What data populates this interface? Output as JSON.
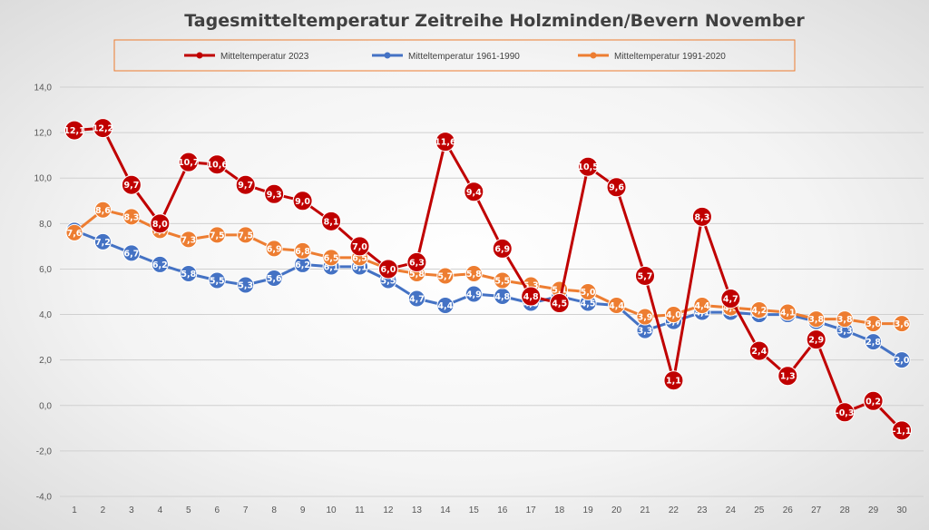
{
  "chart_data": {
    "type": "line",
    "title": "Tagesmitteltemperatur Zeitreihe Holzminden/Bevern November",
    "xlabel": "",
    "ylabel": "",
    "ylim": [
      -4.0,
      14.0
    ],
    "ytick_step": 2.0,
    "y_tick_labels": [
      "-4,0",
      "-2,0",
      "0,0",
      "2,0",
      "4,0",
      "6,0",
      "8,0",
      "10,0",
      "12,0",
      "14,0"
    ],
    "categories": [
      "1",
      "2",
      "3",
      "4",
      "5",
      "6",
      "7",
      "8",
      "9",
      "10",
      "11",
      "12",
      "13",
      "14",
      "15",
      "16",
      "17",
      "18",
      "19",
      "20",
      "21",
      "22",
      "23",
      "24",
      "25",
      "26",
      "27",
      "28",
      "29",
      "30"
    ],
    "grid": "horizontal",
    "legend_position": "top",
    "series": [
      {
        "name": "Mitteltemperatur 2023",
        "color": "#c00000",
        "values": [
          12.1,
          12.2,
          9.7,
          8.0,
          10.7,
          10.6,
          9.7,
          9.3,
          9.0,
          8.1,
          7.0,
          6.0,
          6.3,
          11.6,
          9.4,
          6.9,
          4.8,
          4.5,
          10.5,
          9.6,
          5.7,
          1.1,
          8.3,
          4.7,
          2.4,
          1.3,
          2.9,
          -0.3,
          0.2,
          -1.1
        ],
        "labels": [
          "12,1",
          "12,2",
          "9,7",
          "8,0",
          "10,7",
          "10,6",
          "9,7",
          "9,3",
          "9,0",
          "8,1",
          "7,0",
          "6,0",
          "6,3",
          "11,6",
          "9,4",
          "6,9",
          "4,8",
          "4,5",
          "10,5",
          "9,6",
          "5,7",
          "1,1",
          "8,3",
          "4,7",
          "2,4",
          "1,3",
          "2,9",
          "-0,3",
          "0,2",
          "-1,1"
        ]
      },
      {
        "name": "Mitteltemperatur 1961-1990",
        "color": "#4472c4",
        "values": [
          7.7,
          7.2,
          6.7,
          6.2,
          5.8,
          5.5,
          5.3,
          5.6,
          6.2,
          6.1,
          6.1,
          5.5,
          4.7,
          4.4,
          4.9,
          4.8,
          4.5,
          4.8,
          4.5,
          4.4,
          3.3,
          3.7,
          4.1,
          4.1,
          4.0,
          4.0,
          3.7,
          3.3,
          2.8,
          2.0
        ],
        "labels": [
          "7,7",
          "7,2",
          "6,7",
          "6,2",
          "5,8",
          "5,5",
          "5,3",
          "5,6",
          "6,2",
          "6,1",
          "6,1",
          "5,5",
          "4,7",
          "4,4",
          "4,9",
          "4,8",
          "4,5",
          "4,8",
          "4,5",
          "4,4",
          "3,3",
          "3,7",
          "4,1",
          "4,1",
          "4,0",
          "4,0",
          "3,7",
          "3,3",
          "2,8",
          "2,0"
        ]
      },
      {
        "name": "Mitteltemperatur 1991-2020",
        "color": "#ed7d31",
        "values": [
          7.6,
          8.6,
          8.3,
          7.7,
          7.3,
          7.5,
          7.5,
          6.9,
          6.8,
          6.5,
          6.5,
          6.0,
          5.8,
          5.7,
          5.8,
          5.5,
          5.3,
          5.1,
          5.0,
          4.4,
          3.9,
          4.0,
          4.4,
          4.3,
          4.2,
          4.1,
          3.8,
          3.8,
          3.6,
          3.6
        ],
        "labels": [
          "7,6",
          "8,6",
          "8,3",
          "7,7",
          "7,3",
          "7,5",
          "7,5",
          "6,9",
          "6,8",
          "6,5",
          "6,5",
          "6,0",
          "5,8",
          "5,7",
          "5,8",
          "5,5",
          "5,3",
          "5,1",
          "5,0",
          "4,4",
          "3,9",
          "4,0",
          "4,4",
          "4,3",
          "4,2",
          "4,1",
          "3,8",
          "3,8",
          "3,6",
          "3,6"
        ]
      }
    ]
  }
}
